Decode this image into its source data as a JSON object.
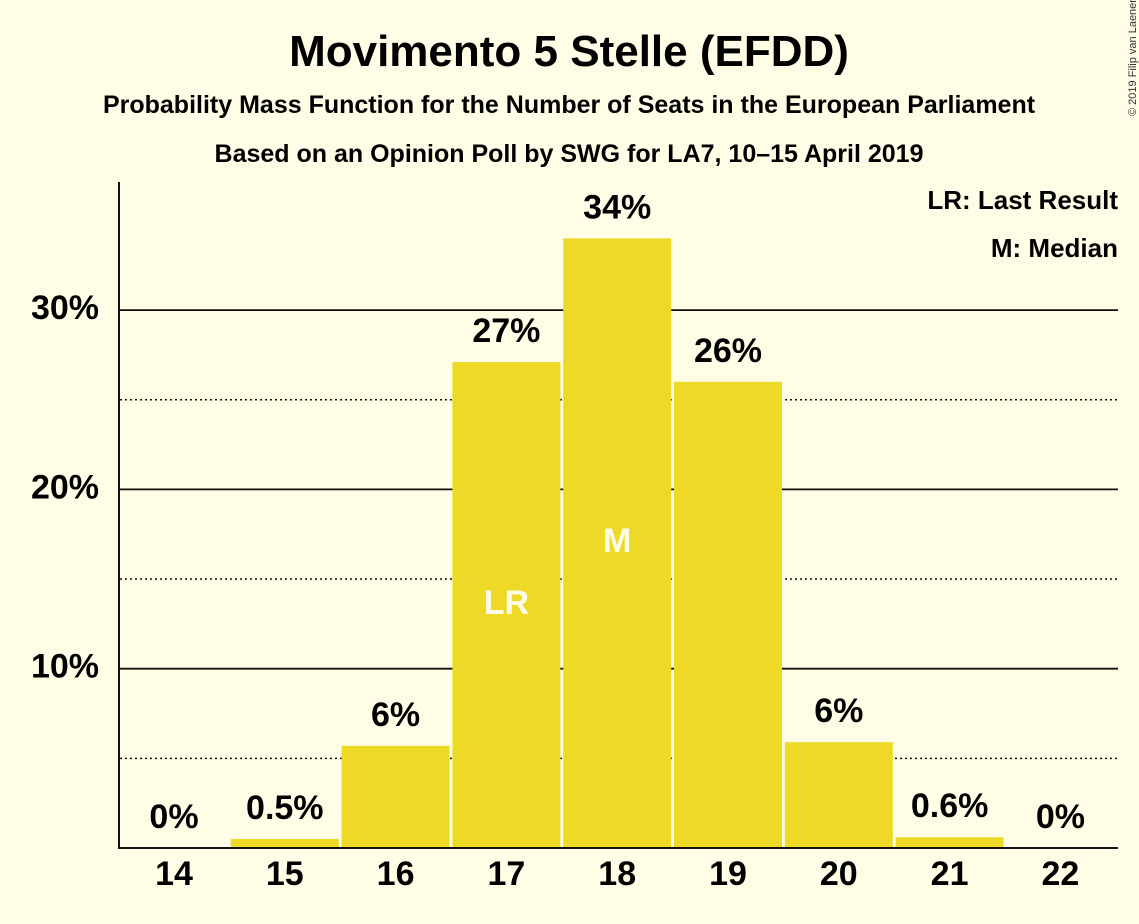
{
  "chart_data": {
    "type": "bar",
    "title": "Movimento 5 Stelle (EFDD)",
    "subtitle": "Probability Mass Function for the Number of Seats in the European Parliament",
    "subtitle2": "Based on an Opinion Poll by SWG for LA7, 10–15 April 2019",
    "copyright": "© 2019 Filip van Laenen",
    "categories": [
      "14",
      "15",
      "16",
      "17",
      "18",
      "19",
      "20",
      "21",
      "22"
    ],
    "values": [
      0,
      0.5,
      5.7,
      27.1,
      34.0,
      26.0,
      5.9,
      0.6,
      0
    ],
    "data_labels": [
      "0%",
      "0.5%",
      "6%",
      "27%",
      "34%",
      "26%",
      "6%",
      "0.6%",
      "0%"
    ],
    "bar_annotations": {
      "17": "LR",
      "18": "M"
    },
    "legend": [
      "LR: Last Result",
      "M: Median"
    ],
    "legend_position": "top-right",
    "ylim": [
      0,
      37
    ],
    "y_ticks": [
      10,
      20,
      30
    ],
    "y_tick_labels": [
      "10%",
      "20%",
      "30%"
    ],
    "minor_gridlines": [
      5,
      15,
      25
    ],
    "bar_color": "#EDD926",
    "grid": true
  }
}
